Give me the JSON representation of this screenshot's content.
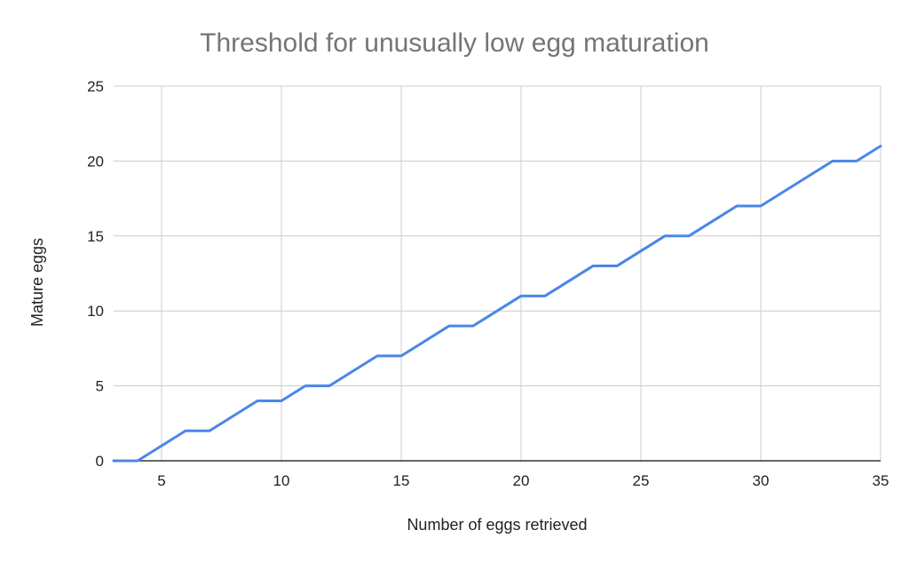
{
  "chart_data": {
    "type": "line",
    "title": "Threshold for unusually low egg maturation",
    "xlabel": "Number of eggs retrieved",
    "ylabel": "Mature eggs",
    "xlim": [
      3,
      35
    ],
    "ylim": [
      0,
      25
    ],
    "xticks": [
      5,
      10,
      15,
      20,
      25,
      30,
      35
    ],
    "yticks": [
      0,
      5,
      10,
      15,
      20,
      25
    ],
    "grid": true,
    "series": [
      {
        "color": "#4a86e8",
        "x": [
          3,
          4,
          5,
          6,
          7,
          8,
          9,
          10,
          11,
          12,
          13,
          14,
          15,
          16,
          17,
          18,
          19,
          20,
          21,
          22,
          23,
          24,
          25,
          26,
          27,
          28,
          29,
          30,
          31,
          32,
          33,
          34,
          35
        ],
        "y": [
          0,
          0,
          1,
          2,
          2,
          3,
          4,
          4,
          5,
          5,
          6,
          7,
          7,
          8,
          9,
          9,
          10,
          11,
          11,
          12,
          13,
          13,
          14,
          15,
          15,
          16,
          17,
          17,
          18,
          19,
          20,
          20,
          21
        ]
      }
    ]
  }
}
